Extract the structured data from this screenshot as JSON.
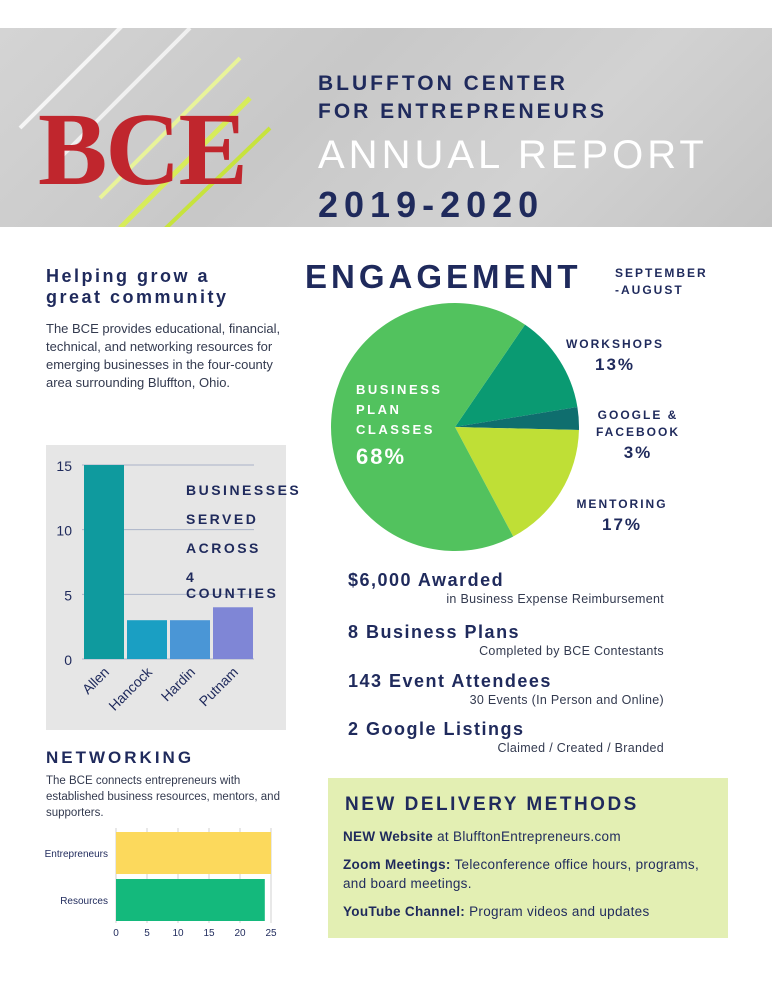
{
  "header": {
    "logo": "BCE",
    "org_line1": "BLUFFTON CENTER",
    "org_line2": "FOR ENTREPRENEURS",
    "report_title": "ANNUAL REPORT",
    "years": "2019-2020"
  },
  "intro": {
    "title_line1": "Helping grow a",
    "title_line2": "great community",
    "body": "The BCE provides educational, financial, technical, and networking resources for emerging businesses in the four-county area surrounding Bluffton, Ohio."
  },
  "colors": {
    "navy": "#1f2a5c",
    "red": "#c0262d",
    "pie_green": "#52c25e",
    "pie_teal": "#0a9a72",
    "pie_dark": "#0f6e6e",
    "pie_lime": "#bfdf36"
  },
  "chart_data": [
    {
      "type": "bar",
      "categories": [
        "Allen",
        "Hancock",
        "Hardin",
        "Putnam"
      ],
      "values": [
        15,
        3,
        3,
        4
      ],
      "colors": [
        "#0f9a9e",
        "#1a9fc3",
        "#4a96d6",
        "#7f86d6"
      ],
      "yticks": [
        0,
        5,
        10,
        15
      ],
      "ylim": [
        0,
        15
      ],
      "caption": [
        "BUSINESSES",
        "SERVED",
        "ACROSS",
        "4 COUNTIES"
      ]
    },
    {
      "type": "pie",
      "title": "ENGAGEMENT",
      "subtitle_line1": "SEPTEMBER",
      "subtitle_line2": "-AUGUST",
      "slices": [
        {
          "name_lines": [
            "BUSINESS",
            "PLAN",
            "CLASSES"
          ],
          "value": 68,
          "label": "68%",
          "color": "#52c25e"
        },
        {
          "name_lines": [
            "WORKSHOPS"
          ],
          "value": 13,
          "label": "13%",
          "color": "#0a9a72"
        },
        {
          "name_lines": [
            "GOOGLE &",
            "FACEBOOK"
          ],
          "value": 3,
          "label": "3%",
          "color": "#0f6e6e"
        },
        {
          "name_lines": [
            "MENTORING"
          ],
          "value": 17,
          "label": "17%",
          "color": "#bfdf36"
        }
      ]
    },
    {
      "type": "bar",
      "orientation": "horizontal",
      "title": "NETWORKING",
      "categories": [
        "Entrepreneurs",
        "Resources"
      ],
      "values": [
        25,
        24
      ],
      "colors": [
        "#fcd95c",
        "#14b97c"
      ],
      "xticks": [
        0,
        5,
        10,
        15,
        20,
        25
      ],
      "xlim": [
        0,
        25
      ]
    }
  ],
  "networking": {
    "body": "The BCE connects entrepreneurs with established business resources, mentors, and supporters."
  },
  "stats": [
    {
      "headline": "$6,000 Awarded",
      "detail": "in Business Expense Reimbursement"
    },
    {
      "headline": "8 Business Plans",
      "detail": "Completed by BCE Contestants"
    },
    {
      "headline": "143 Event Attendees",
      "detail": "30 Events (In Person and Online)"
    },
    {
      "headline": "2 Google Listings",
      "detail": "Claimed / Created / Branded"
    }
  ],
  "delivery": {
    "title": "NEW DELIVERY METHODS",
    "items": [
      {
        "label": "NEW Website",
        "text": " at BlufftonEntrepreneurs.com"
      },
      {
        "label": "Zoom Meetings:",
        "text": " Teleconference office hours, programs, and board meetings."
      },
      {
        "label": "YouTube Channel:",
        "text": " Program videos and updates"
      }
    ]
  }
}
